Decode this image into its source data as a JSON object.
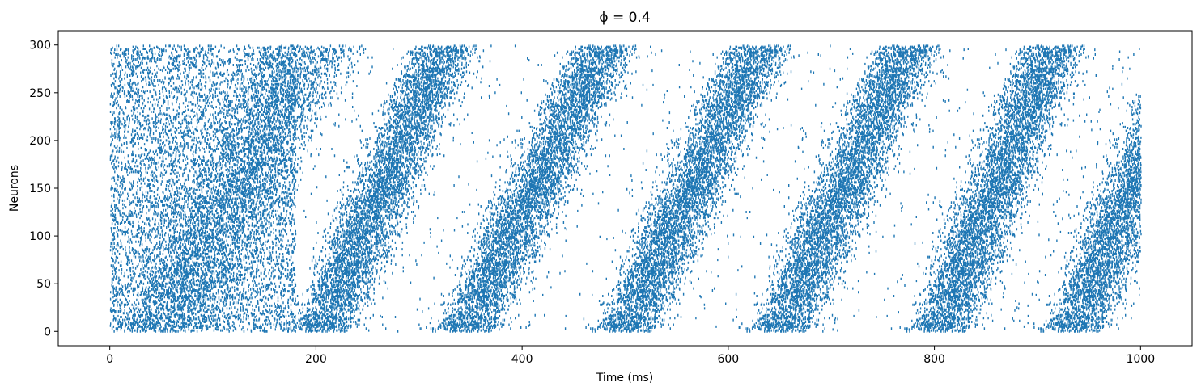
{
  "chart_data": {
    "type": "scatter",
    "title": "ϕ = 0.4",
    "xlabel": "Time (ms)",
    "ylabel": "Neurons",
    "xlim": [
      -50,
      1050
    ],
    "ylim": [
      -15,
      315
    ],
    "xticks": [
      0,
      200,
      400,
      600,
      800,
      1000
    ],
    "yticks": [
      0,
      50,
      100,
      150,
      200,
      250,
      300
    ],
    "xtick_labels": [
      "0",
      "200",
      "400",
      "600",
      "800",
      "1000"
    ],
    "ytick_labels": [
      "0",
      "50",
      "100",
      "150",
      "200",
      "250",
      "300"
    ],
    "grid": false,
    "marker_color": "#1f77b4",
    "series": [
      {
        "neuron_range": [
          0,
          299
        ],
        "time_range_ms": [
          0,
          1000
        ],
        "initial_irregular_activity_ms": [
          0,
          180
        ],
        "travelling_wave_bands": [
          {
            "neuron_0_time_ms": 205,
            "neuron_299_time_ms": 325
          },
          {
            "neuron_0_time_ms": 345,
            "neuron_299_time_ms": 480
          },
          {
            "neuron_0_time_ms": 500,
            "neuron_299_time_ms": 630
          },
          {
            "neuron_0_time_ms": 650,
            "neuron_299_time_ms": 775
          },
          {
            "neuron_0_time_ms": 805,
            "neuron_299_time_ms": 915
          },
          {
            "neuron_0_time_ms": 935,
            "neuron_299_time_ms": 1050
          }
        ]
      }
    ]
  }
}
